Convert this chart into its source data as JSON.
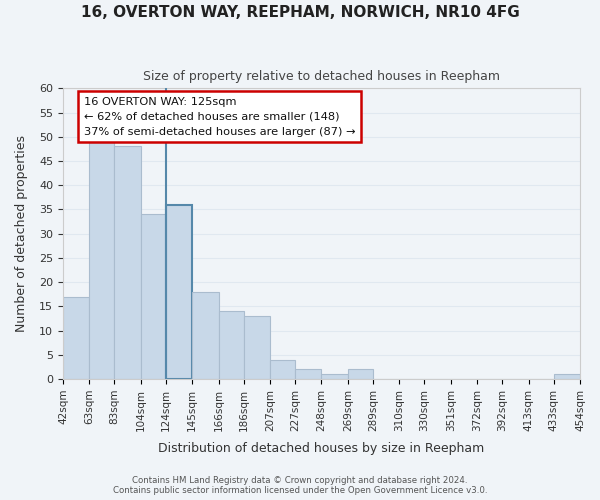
{
  "title": "16, OVERTON WAY, REEPHAM, NORWICH, NR10 4FG",
  "subtitle": "Size of property relative to detached houses in Reepham",
  "xlabel": "Distribution of detached houses by size in Reepham",
  "ylabel": "Number of detached properties",
  "bar_edges": [
    42,
    63,
    83,
    104,
    124,
    145,
    166,
    186,
    207,
    227,
    248,
    269,
    289,
    310,
    330,
    351,
    372,
    392,
    413,
    433,
    454
  ],
  "bar_heights": [
    17,
    49,
    48,
    34,
    36,
    18,
    14,
    13,
    4,
    2,
    1,
    2,
    0,
    0,
    0,
    0,
    0,
    0,
    0,
    1
  ],
  "bar_color": "#c8d8e8",
  "bar_edge_color": "#aabcce",
  "highlight_x": 124,
  "highlight_edge_color": "#5588aa",
  "annotation_title": "16 OVERTON WAY: 125sqm",
  "annotation_line1": "← 62% of detached houses are smaller (148)",
  "annotation_line2": "37% of semi-detached houses are larger (87) →",
  "annotation_box_color": "#ffffff",
  "annotation_box_edge": "#cc0000",
  "ylim": [
    0,
    60
  ],
  "xlim": [
    42,
    454
  ],
  "tick_labels": [
    "42sqm",
    "63sqm",
    "83sqm",
    "104sqm",
    "124sqm",
    "145sqm",
    "166sqm",
    "186sqm",
    "207sqm",
    "227sqm",
    "248sqm",
    "269sqm",
    "289sqm",
    "310sqm",
    "330sqm",
    "351sqm",
    "372sqm",
    "392sqm",
    "413sqm",
    "433sqm",
    "454sqm"
  ],
  "footer_line1": "Contains HM Land Registry data © Crown copyright and database right 2024.",
  "footer_line2": "Contains public sector information licensed under the Open Government Licence v3.0.",
  "grid_color": "#e0e8f0",
  "background_color": "#f0f4f8"
}
